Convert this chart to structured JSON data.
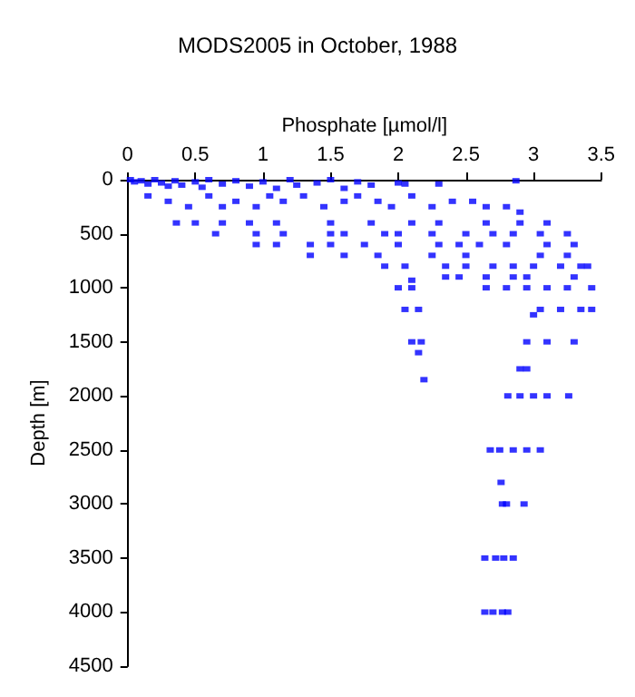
{
  "chart_data": {
    "type": "scatter",
    "title": "MODS2005 in October, 1988",
    "xlabel": "Phosphate [µmol/l]",
    "ylabel": "Depth [m]",
    "xlim": [
      0,
      3.5
    ],
    "xticks": [
      0,
      0.5,
      1,
      1.5,
      2,
      2.5,
      3,
      3.5
    ],
    "ylim": [
      4500,
      0
    ],
    "yticks": [
      0,
      500,
      1000,
      1500,
      2000,
      2500,
      3000,
      3500,
      4000,
      4500
    ],
    "grid": false,
    "marker": "square",
    "series": [
      {
        "color": "#0000ff",
        "x": [
          0.02,
          0.05,
          0.1,
          0.15,
          0.2,
          0.25,
          0.3,
          0.35,
          0.4,
          0.5,
          0.55,
          0.6,
          0.7,
          0.8,
          0.9,
          1.0,
          1.1,
          1.2,
          1.25,
          1.4,
          1.5,
          1.6,
          1.7,
          1.8,
          2.0,
          2.05,
          2.3,
          2.87,
          0.15,
          0.3,
          0.45,
          0.6,
          0.7,
          0.8,
          0.95,
          1.05,
          1.15,
          1.3,
          1.45,
          1.6,
          1.7,
          1.85,
          1.95,
          2.1,
          2.25,
          2.4,
          2.55,
          2.65,
          2.8,
          2.9,
          0.36,
          0.5,
          0.7,
          0.9,
          1.1,
          1.5,
          1.8,
          2.1,
          2.3,
          2.65,
          2.9,
          3.1,
          0.65,
          0.95,
          1.15,
          1.5,
          1.6,
          1.9,
          2.0,
          2.25,
          2.5,
          2.7,
          2.85,
          3.05,
          3.25,
          0.95,
          1.1,
          1.35,
          1.5,
          1.75,
          2.0,
          2.3,
          2.45,
          2.6,
          2.8,
          3.1,
          3.3,
          1.35,
          1.6,
          1.85,
          2.25,
          2.5,
          3.05,
          3.25,
          1.9,
          2.05,
          2.35,
          2.5,
          2.7,
          2.85,
          3.0,
          3.2,
          3.35,
          3.4,
          2.35,
          2.45,
          2.65,
          2.85,
          2.95,
          3.3,
          2.1,
          2.0,
          2.1,
          2.65,
          2.8,
          2.95,
          3.1,
          3.25,
          3.43,
          2.05,
          2.15,
          3.05,
          3.2,
          3.35,
          3.43,
          3.0,
          2.1,
          2.17,
          2.95,
          3.1,
          3.3,
          2.15,
          2.9,
          2.95,
          2.19,
          2.81,
          2.9,
          3.0,
          3.1,
          3.26,
          2.68,
          2.75,
          2.85,
          2.95,
          3.05,
          2.76,
          2.77,
          2.8,
          2.93,
          2.64,
          2.72,
          2.78,
          2.85,
          2.64,
          2.7,
          2.77,
          2.81
        ],
        "values": [
          0,
          20,
          10,
          40,
          0,
          30,
          60,
          10,
          50,
          20,
          70,
          0,
          40,
          10,
          60,
          20,
          80,
          0,
          50,
          30,
          0,
          80,
          20,
          50,
          30,
          40,
          40,
          10,
          150,
          200,
          250,
          150,
          250,
          200,
          250,
          150,
          200,
          150,
          250,
          200,
          150,
          200,
          250,
          150,
          250,
          200,
          200,
          250,
          250,
          300,
          400,
          400,
          400,
          400,
          400,
          400,
          400,
          400,
          400,
          400,
          400,
          400,
          500,
          500,
          500,
          500,
          500,
          500,
          500,
          500,
          500,
          500,
          500,
          500,
          500,
          600,
          600,
          600,
          600,
          600,
          600,
          600,
          600,
          600,
          600,
          600,
          600,
          700,
          700,
          700,
          700,
          700,
          700,
          700,
          800,
          800,
          800,
          800,
          800,
          800,
          800,
          800,
          800,
          800,
          900,
          900,
          900,
          900,
          900,
          900,
          930,
          1000,
          1000,
          1000,
          1000,
          1000,
          1000,
          1000,
          1000,
          1200,
          1200,
          1200,
          1200,
          1200,
          1200,
          1250,
          1500,
          1500,
          1500,
          1500,
          1500,
          1600,
          1750,
          1750,
          1850,
          2000,
          2000,
          2000,
          2000,
          2000,
          2500,
          2500,
          2500,
          2500,
          2500,
          2800,
          3000,
          3000,
          3000,
          3500,
          3500,
          3500,
          3500,
          4000,
          4000,
          4000,
          4000
        ]
      }
    ]
  }
}
